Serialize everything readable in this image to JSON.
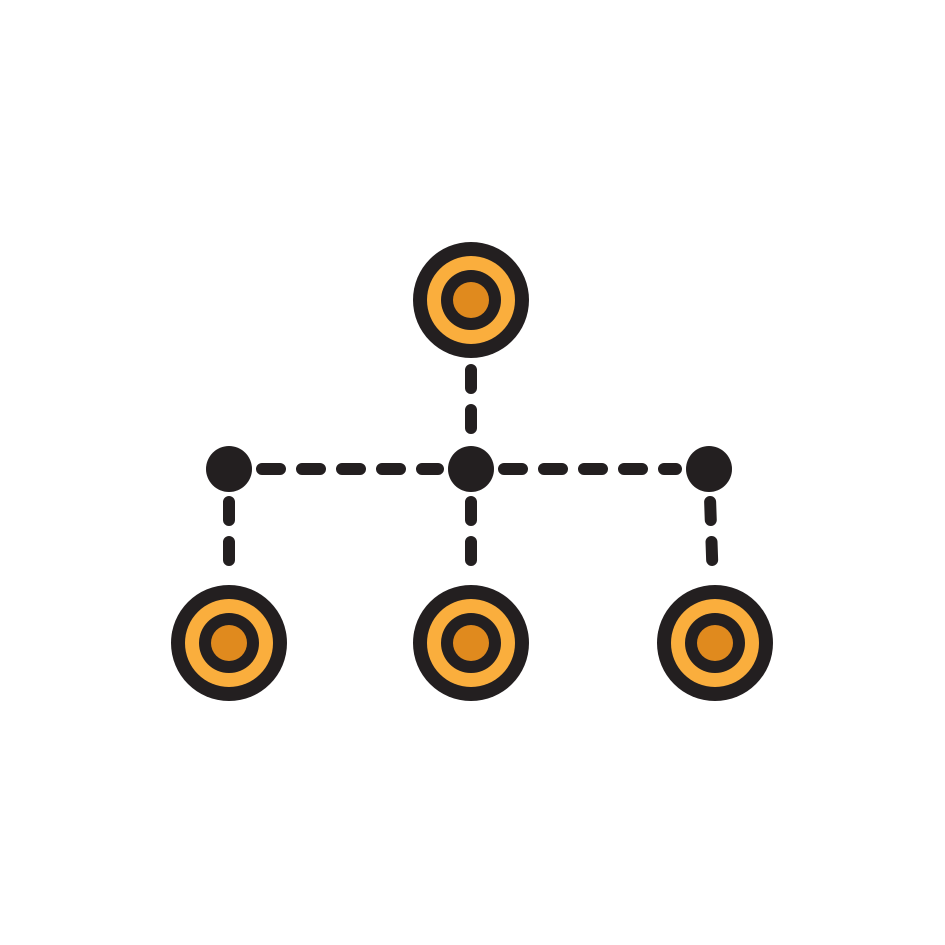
{
  "diagram": {
    "type": "hierarchy-network-icon",
    "colors": {
      "background": "#FFFFFF",
      "outline": "#231F20",
      "ring": "#FAAE3D",
      "core": "#E08A1E",
      "connector": "#231F20"
    },
    "nodes": [
      {
        "id": "root",
        "kind": "target-node",
        "level": 0
      },
      {
        "id": "junction-left",
        "kind": "junction-dot",
        "level": 1
      },
      {
        "id": "junction-center",
        "kind": "junction-dot",
        "level": 1
      },
      {
        "id": "junction-right",
        "kind": "junction-dot",
        "level": 1
      },
      {
        "id": "child-left",
        "kind": "target-node",
        "level": 2
      },
      {
        "id": "child-center",
        "kind": "target-node",
        "level": 2
      },
      {
        "id": "child-right",
        "kind": "target-node",
        "level": 2
      }
    ],
    "edges": [
      {
        "from": "root",
        "to": "junction-center",
        "style": "dashed"
      },
      {
        "from": "junction-left",
        "to": "junction-center",
        "style": "dashed"
      },
      {
        "from": "junction-center",
        "to": "junction-right",
        "style": "dashed"
      },
      {
        "from": "junction-left",
        "to": "child-left",
        "style": "dashed"
      },
      {
        "from": "junction-center",
        "to": "child-center",
        "style": "dashed"
      },
      {
        "from": "junction-right",
        "to": "child-right",
        "style": "dashed"
      }
    ]
  }
}
